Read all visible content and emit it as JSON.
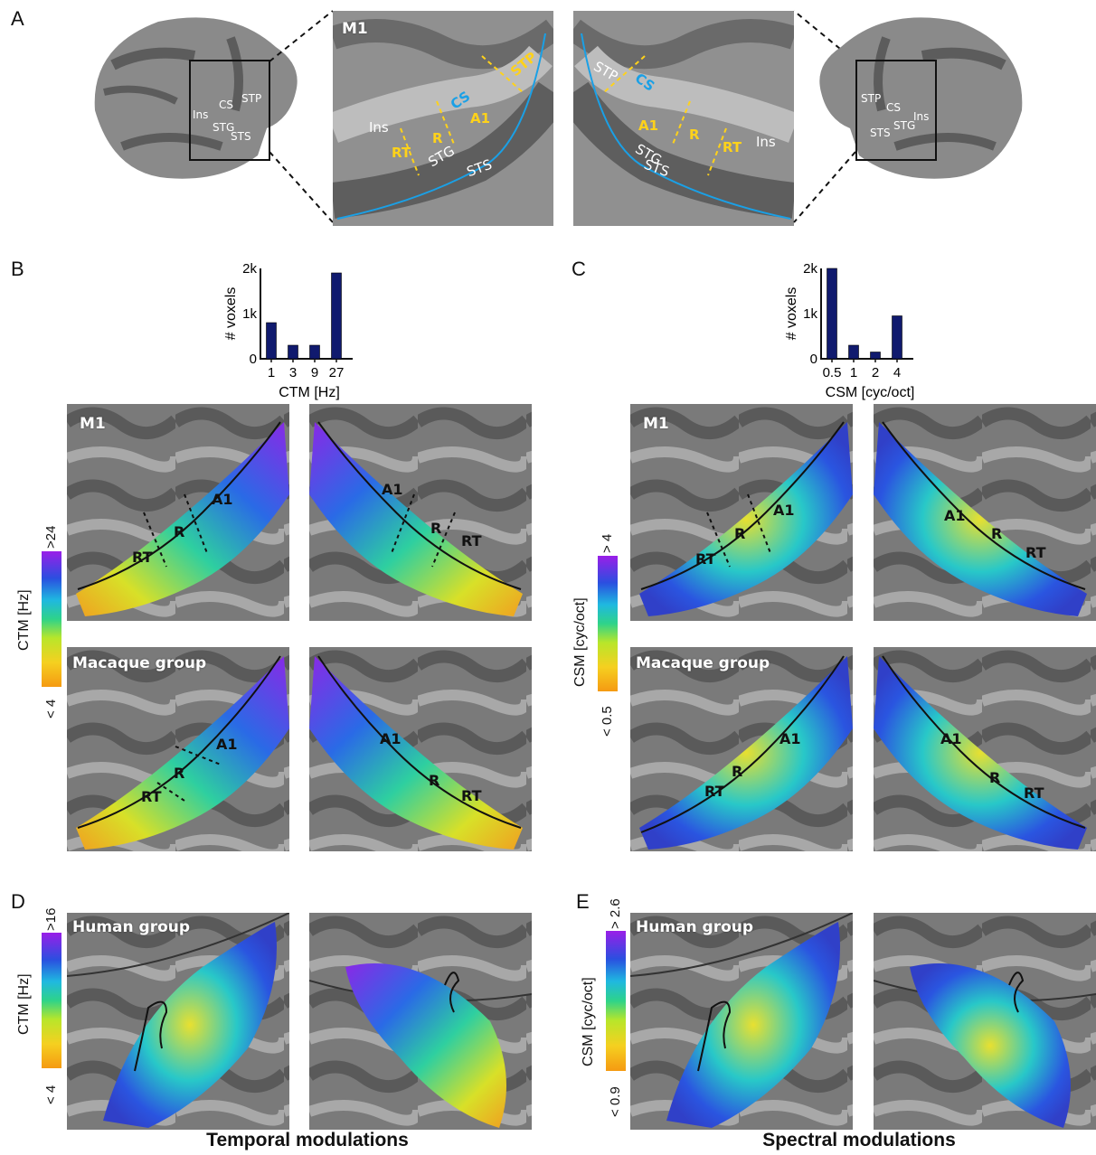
{
  "panel_labels": {
    "A": "A",
    "B": "B",
    "C": "C",
    "D": "D",
    "E": "E"
  },
  "panelA": {
    "brain_left_labels": [
      "Ins",
      "CS",
      "STP",
      "STG",
      "STS"
    ],
    "zoom_left": {
      "title": "M1",
      "labels": {
        "ins": "Ins",
        "cs": "CS",
        "stp": "STP",
        "rt": "RT",
        "r": "R",
        "a1": "A1",
        "stg": "STG",
        "sts": "STS"
      }
    },
    "zoom_right": {
      "labels": {
        "stp": "STP",
        "cs": "CS",
        "a1": "A1",
        "stg": "STG",
        "sts": "STS",
        "r": "R",
        "rt": "RT",
        "ins": "Ins"
      }
    },
    "brain_right_labels": [
      "STP",
      "CS",
      "Ins",
      "STS",
      "STG"
    ]
  },
  "panelB": {
    "colorbar": {
      "title": "CTM [Hz]",
      "max_label": ">24",
      "min_label": "< 4"
    },
    "rows": [
      {
        "title": "M1",
        "areas": [
          "RT",
          "R",
          "A1"
        ]
      },
      {
        "title": "Macaque group",
        "areas": [
          "RT",
          "R",
          "A1"
        ]
      }
    ]
  },
  "panelC": {
    "colorbar": {
      "title": "CSM [cyc/oct]",
      "max_label": "> 4",
      "min_label": "< 0.5"
    },
    "rows": [
      {
        "title": "M1",
        "areas": [
          "RT",
          "R",
          "A1"
        ]
      },
      {
        "title": "Macaque group",
        "areas": [
          "RT",
          "R",
          "A1"
        ]
      }
    ]
  },
  "panelD": {
    "title": "Human group",
    "colorbar": {
      "title": "CTM [Hz]",
      "max_label": ">16",
      "min_label": "< 4"
    },
    "caption": "Temporal modulations"
  },
  "panelE": {
    "title": "Human group",
    "colorbar": {
      "title": "CSM [cyc/oct]",
      "max_label": "> 2.6",
      "min_label": "< 0.9"
    },
    "caption": "Spectral modulations"
  },
  "chart_data": [
    {
      "type": "bar",
      "categories": [
        "1",
        "3",
        "9",
        "27"
      ],
      "values": [
        800,
        300,
        300,
        1900
      ],
      "xlabel": "CTM [Hz]",
      "ylabel": "# voxels",
      "ylim": [
        0,
        2000
      ],
      "yticks": [
        "0",
        "1k",
        "2k"
      ],
      "color": "#101a6e"
    },
    {
      "type": "bar",
      "categories": [
        "0.5",
        "1",
        "2",
        "4"
      ],
      "values": [
        2000,
        300,
        150,
        950
      ],
      "xlabel": "CSM [cyc/oct]",
      "ylabel": "# voxels",
      "ylim": [
        0,
        2000
      ],
      "yticks": [
        "0",
        "1k",
        "2k"
      ],
      "color": "#101a6e"
    }
  ]
}
